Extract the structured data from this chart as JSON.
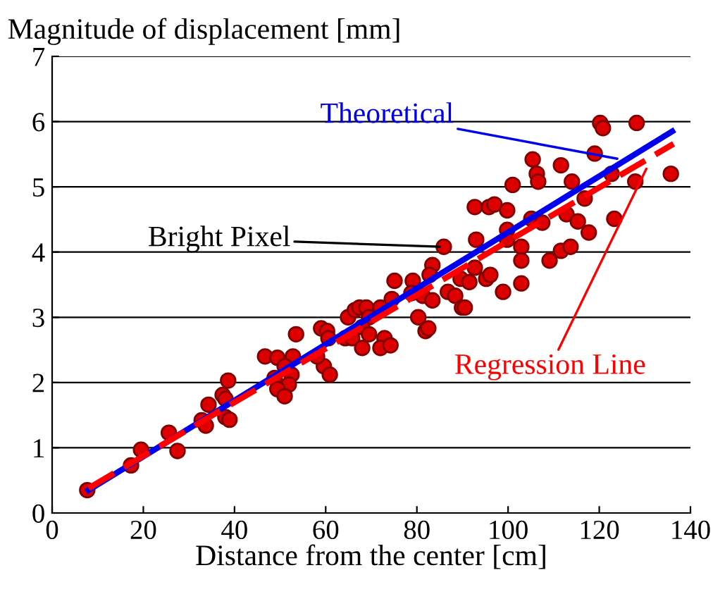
{
  "chart_data": {
    "type": "scatter",
    "xlabel": "Distance from the center [cm]",
    "ylabel": "Magnitude of displacement [mm]",
    "xlim": [
      0,
      140
    ],
    "xticks": [
      0,
      20,
      40,
      60,
      80,
      100,
      120,
      140
    ],
    "ylim": [
      0,
      7
    ],
    "yticks": [
      0,
      1,
      2,
      3,
      4,
      5,
      6,
      7
    ],
    "grid": "y",
    "legend": false,
    "series": [
      {
        "color": "#dd0000",
        "marker": "circle",
        "x": [
          7.7,
          17.3,
          19.5,
          25.6,
          27.5,
          32.8,
          33.7,
          34.3,
          37.4,
          38,
          38.6,
          38,
          38.9,
          53.5,
          46.7,
          49.4,
          52.8,
          48.8,
          51,
          52.5,
          51.9,
          49.4,
          51,
          59.6,
          60.9,
          59,
          60.3,
          60.6,
          58.1,
          64.3,
          64.9,
          66.4,
          67.4,
          68.9,
          69.5,
          68,
          65.8,
          68,
          69.5,
          72,
          72.9,
          72,
          74.2,
          75.1,
          74.5,
          79.1,
          78.8,
          80.3,
          81.9,
          82.5,
          83.4,
          82.8,
          81.3,
          83.4,
          85.9,
          86.8,
          88.4,
          89.6,
          89.9,
          90.5,
          91.5,
          92.7,
          93,
          95.2,
          96.1,
          98.9,
          92.7,
          95.8,
          97,
          99.8,
          99.8,
          99.8,
          102.9,
          102.9,
          102.9,
          101,
          105.4,
          106.3,
          106.6,
          105.1,
          107.5,
          109.1,
          111.6,
          113.7,
          111.6,
          114,
          112.8,
          115.3,
          116.8,
          117.7,
          119,
          120.2,
          120.8,
          122.7,
          123.3,
          127.9,
          128.2,
          135.7
        ],
        "values": [
          0.35,
          0.73,
          0.97,
          1.23,
          0.95,
          1.42,
          1.34,
          1.66,
          1.81,
          1.75,
          2.03,
          1.47,
          1.43,
          2.74,
          2.4,
          2.38,
          2.4,
          2.07,
          2.25,
          2.12,
          1.97,
          1.9,
          1.79,
          2.25,
          2.12,
          2.83,
          2.79,
          2.68,
          2.4,
          2.68,
          3.0,
          3.11,
          3.15,
          3.15,
          3.0,
          2.85,
          2.68,
          2.53,
          2.74,
          3.15,
          2.68,
          2.53,
          2.57,
          3.56,
          3.28,
          3.56,
          3.37,
          3.0,
          2.79,
          2.83,
          3.8,
          3.65,
          3.33,
          3.26,
          4.08,
          3.39,
          3.33,
          3.59,
          3.15,
          3.15,
          3.54,
          3.76,
          4.19,
          3.59,
          3.65,
          3.39,
          4.69,
          4.69,
          4.73,
          4.64,
          4.34,
          4.19,
          4.08,
          3.87,
          3.52,
          5.03,
          5.42,
          5.2,
          5.08,
          4.51,
          4.45,
          3.87,
          4.02,
          4.08,
          5.33,
          5.08,
          4.58,
          4.47,
          4.82,
          4.3,
          5.51,
          5.98,
          5.9,
          5.2,
          4.51,
          5.08,
          5.98,
          5.2
        ]
      },
      {
        "type": "line",
        "color": "#0000ee",
        "line_style": "solid",
        "marker": "none",
        "x": [
          8,
          136
        ],
        "values": [
          0.35,
          5.85
        ]
      },
      {
        "type": "line",
        "color": "#ff0000",
        "line_style": "dashed",
        "marker": "none",
        "x": [
          8,
          136.3
        ],
        "values": [
          0.38,
          5.66
        ]
      }
    ],
    "annotations": [
      {
        "text": "Theoretical",
        "x": 124.8,
        "y": 5.42
      },
      {
        "text": "Bright Pixel",
        "x": 85.9,
        "y": 4.08
      },
      {
        "text": "Regression Line",
        "x": 130.7,
        "y": 5.33
      }
    ]
  }
}
